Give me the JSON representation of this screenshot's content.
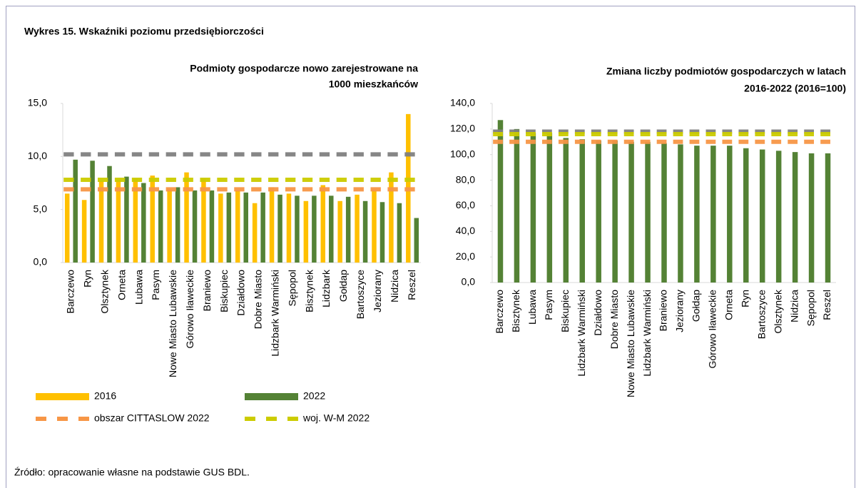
{
  "header": {
    "title": "Wykres 15. Wskaźniki poziomu przedsiębiorczości"
  },
  "source": "Źródło: opracowanie własne na podstawie GUS BDL.",
  "chart_data": [
    {
      "type": "bar",
      "title": [
        "Podmioty gospodarcze nowo zarejestrowane na",
        "1000 mieszkańców"
      ],
      "categories": [
        "Barczewo",
        "Ryn",
        "Olsztynek",
        "Orneta",
        "Lubawa",
        "Pasym",
        "Nowe Miasto Lubawskie",
        "Górowo Iławeckie",
        "Braniewo",
        "Biskupiec",
        "Działdowo",
        "Dobre Miasto",
        "Lidzbark Warmiński",
        "Sępopol",
        "Bisztynek",
        "Lidzbark",
        "Gołdap",
        "Bartoszyce",
        "Jeziorany",
        "Nidzica",
        "Reszel"
      ],
      "series": [
        {
          "name": "2016",
          "color": "#ffc000",
          "values": [
            6.5,
            5.9,
            7.7,
            7.8,
            7.9,
            8.2,
            6.9,
            8.5,
            7.9,
            6.5,
            6.8,
            5.6,
            7.1,
            6.5,
            5.8,
            7.3,
            5.8,
            6.4,
            6.9,
            8.5,
            14.0
          ]
        },
        {
          "name": "2022",
          "color": "#548235",
          "values": [
            9.7,
            9.6,
            9.1,
            8.1,
            7.5,
            6.8,
            7.1,
            6.8,
            6.8,
            6.6,
            6.6,
            6.6,
            6.4,
            6.3,
            6.3,
            6.3,
            6.2,
            5.8,
            5.7,
            5.6,
            4.2
          ]
        }
      ],
      "lines": [
        {
          "color": "#808080",
          "value": 10.2
        },
        {
          "name": "obszar CITTASLOW 2022",
          "color": "#f79646",
          "value": 6.9
        },
        {
          "name": "woj. W-M 2022",
          "color": "#cccc00",
          "value": 7.8
        }
      ],
      "ylim": [
        0,
        15
      ],
      "yticks": [
        {
          "value": 0,
          "label": "0,0"
        },
        {
          "value": 5,
          "label": "5,0"
        },
        {
          "value": 10,
          "label": "10,0"
        },
        {
          "value": 15,
          "label": "15,0"
        }
      ]
    },
    {
      "type": "bar",
      "title": [
        "Zmiana liczby podmiotów gospodarczych w latach",
        "2016-2022 (2016=100)"
      ],
      "categories": [
        "Barczewo",
        "Bisztynek",
        "Lubawa",
        "Pasym",
        "Biskupiec",
        "Lidzbark Warmiński",
        "Działdowo",
        "Dobre Miasto",
        "Nowe Miasto Lubawskie",
        "Lidzbark Warmiński",
        "Braniewo",
        "Jeziorany",
        "Gołdap",
        "Górowo Iławeckie",
        "Orneta",
        "Ryn",
        "Bartoszyce",
        "Olsztynek",
        "Nidzica",
        "Sępopol",
        "Reszel"
      ],
      "series": [
        {
          "color": "#548235",
          "values": [
            127,
            120,
            117,
            117,
            113,
            112,
            111,
            111,
            110,
            110,
            109,
            108,
            107,
            107,
            107,
            105,
            104,
            103,
            102,
            101,
            101
          ]
        }
      ],
      "lines": [
        {
          "color": "#808080",
          "value": 118
        },
        {
          "color": "#f79646",
          "value": 110
        },
        {
          "color": "#cccc00",
          "value": 116
        }
      ],
      "ylim": [
        0,
        140
      ],
      "yticks": [
        {
          "value": 0,
          "label": "0,0"
        },
        {
          "value": 20,
          "label": "20,0"
        },
        {
          "value": 40,
          "label": "40,0"
        },
        {
          "value": 60,
          "label": "60,0"
        },
        {
          "value": 80,
          "label": "80,0"
        },
        {
          "value": 100,
          "label": "100,0"
        },
        {
          "value": 120,
          "label": "120,0"
        },
        {
          "value": 140,
          "label": "140,0"
        }
      ]
    }
  ]
}
